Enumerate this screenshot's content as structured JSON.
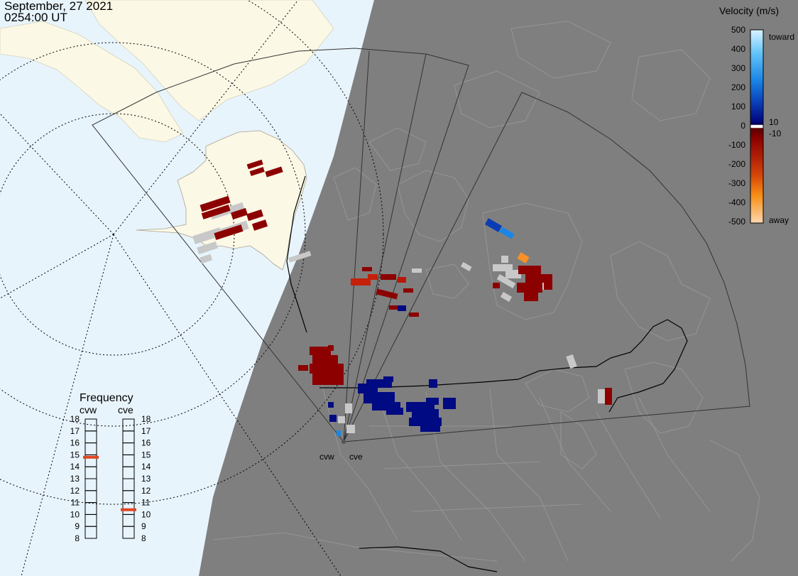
{
  "timestamp": {
    "date": "September, 27 2021",
    "time": "0254:00 UT"
  },
  "colors": {
    "ocean": "#e8f4fc",
    "night": "#7f7f7f",
    "land_day": "#fbf8e6",
    "ground_scatter": "#c8c8c8",
    "frequency_marker": "#e0441c"
  },
  "radars": [
    {
      "name": "cvw",
      "frequency_mhz": 14.8
    },
    {
      "name": "cve",
      "frequency_mhz": 10.4
    }
  ],
  "velocity_scale": {
    "title": "Velocity (m/s)",
    "ticks": [
      "500",
      "400",
      "300",
      "200",
      "100",
      "0",
      "-100",
      "-200",
      "-300",
      "-400",
      "-500"
    ],
    "labels": {
      "toward": "toward",
      "away": "away",
      "pos_threshold": "10",
      "neg_threshold": "-10"
    }
  },
  "frequency_panel": {
    "title": "Frequency",
    "ticks": [
      "18",
      "17",
      "16",
      "15",
      "14",
      "13",
      "12",
      "11",
      "10",
      "9",
      "8"
    ]
  }
}
